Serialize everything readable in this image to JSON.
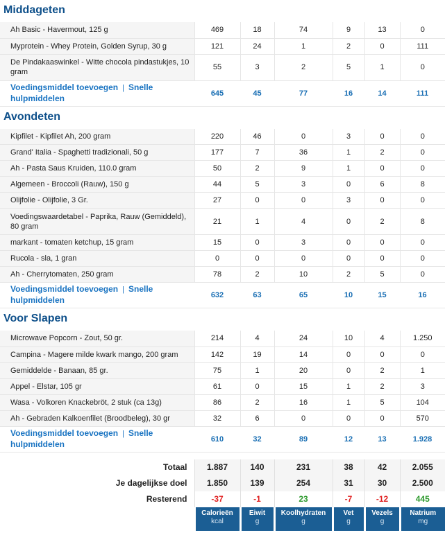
{
  "meals": [
    {
      "title": "Middageten",
      "foods": [
        {
          "name": "Ah Basic - Havermout, 125 g",
          "vals": [
            "469",
            "18",
            "74",
            "9",
            "13",
            "0"
          ]
        },
        {
          "name": "Myprotein - Whey Protein, Golden Syrup, 30 g",
          "vals": [
            "121",
            "24",
            "1",
            "2",
            "0",
            "111"
          ]
        },
        {
          "name": "De Pindakaaswinkel - Witte chocola pindastukjes, 10 gram",
          "vals": [
            "55",
            "3",
            "2",
            "5",
            "1",
            "0"
          ]
        }
      ],
      "totals": [
        "645",
        "45",
        "77",
        "16",
        "14",
        "111"
      ]
    },
    {
      "title": "Avondeten",
      "foods": [
        {
          "name": "Kipfilet - Kipfilet Ah, 200 gram",
          "vals": [
            "220",
            "46",
            "0",
            "3",
            "0",
            "0"
          ]
        },
        {
          "name": "Grand' Italia - Spaghetti tradizionali, 50 g",
          "vals": [
            "177",
            "7",
            "36",
            "1",
            "2",
            "0"
          ]
        },
        {
          "name": "Ah - Pasta Saus Kruiden, 110.0 gram",
          "vals": [
            "50",
            "2",
            "9",
            "1",
            "0",
            "0"
          ]
        },
        {
          "name": "Algemeen - Broccoli (Rauw), 150 g",
          "vals": [
            "44",
            "5",
            "3",
            "0",
            "6",
            "8"
          ]
        },
        {
          "name": "Olijfolie - Olijfolie, 3 Gr.",
          "vals": [
            "27",
            "0",
            "0",
            "3",
            "0",
            "0"
          ]
        },
        {
          "name": "Voedingswaardetabel - Paprika, Rauw (Gemiddeld), 80 gram",
          "vals": [
            "21",
            "1",
            "4",
            "0",
            "2",
            "8"
          ]
        },
        {
          "name": "markant - tomaten ketchup, 15 gram",
          "vals": [
            "15",
            "0",
            "3",
            "0",
            "0",
            "0"
          ]
        },
        {
          "name": "Rucola - sla, 1 gran",
          "vals": [
            "0",
            "0",
            "0",
            "0",
            "0",
            "0"
          ]
        },
        {
          "name": "Ah - Cherrytomaten, 250 gram",
          "vals": [
            "78",
            "2",
            "10",
            "2",
            "5",
            "0"
          ]
        }
      ],
      "totals": [
        "632",
        "63",
        "65",
        "10",
        "15",
        "16"
      ]
    },
    {
      "title": "Voor Slapen",
      "foods": [
        {
          "name": "Microwave Popcorn - Zout, 50 gr.",
          "vals": [
            "214",
            "4",
            "24",
            "10",
            "4",
            "1.250"
          ]
        },
        {
          "name": "Campina - Magere milde kwark mango, 200 gram",
          "vals": [
            "142",
            "19",
            "14",
            "0",
            "0",
            "0"
          ]
        },
        {
          "name": "Gemiddelde - Banaan, 85 gr.",
          "vals": [
            "75",
            "1",
            "20",
            "0",
            "2",
            "1"
          ]
        },
        {
          "name": "Appel - Elstar, 105 gr",
          "vals": [
            "61",
            "0",
            "15",
            "1",
            "2",
            "3"
          ]
        },
        {
          "name": "Wasa - Volkoren Knackebröt, 2 stuk (ca 13g)",
          "vals": [
            "86",
            "2",
            "16",
            "1",
            "5",
            "104"
          ]
        },
        {
          "name": "Ah - Gebraden Kalkoenfilet (Broodbeleg), 30 gr",
          "vals": [
            "32",
            "6",
            "0",
            "0",
            "0",
            "570"
          ]
        }
      ],
      "totals": [
        "610",
        "32",
        "89",
        "12",
        "13",
        "1.928"
      ]
    }
  ],
  "links": {
    "add_food": "Voedingsmiddel toevoegen",
    "separator": "|",
    "quick_tools": "Snelle hulpmiddelen"
  },
  "summary": {
    "totaal": {
      "label": "Totaal",
      "vals": [
        "1.887",
        "140",
        "231",
        "38",
        "42",
        "2.055"
      ]
    },
    "doel": {
      "label": "Je dagelijkse doel",
      "vals": [
        "1.850",
        "139",
        "254",
        "31",
        "30",
        "2.500"
      ]
    },
    "resterend": {
      "label": "Resterend",
      "vals": [
        "-37",
        "-1",
        "23",
        "-7",
        "-12",
        "445"
      ],
      "signs": [
        "neg",
        "neg",
        "pos",
        "neg",
        "neg",
        "pos"
      ]
    }
  },
  "columns": [
    {
      "title": "Calorieën",
      "unit": "kcal"
    },
    {
      "title": "Eiwit",
      "unit": "g"
    },
    {
      "title": "Koolhydraten",
      "unit": "g"
    },
    {
      "title": "Vet",
      "unit": "g"
    },
    {
      "title": "Vezels",
      "unit": "g"
    },
    {
      "title": "Natrium",
      "unit": "mg"
    }
  ],
  "colors": {
    "heading": "#0d4f8a",
    "link": "#1a74c2",
    "header_bg": "#1b5e94",
    "positive": "#2e9a2e",
    "negative": "#e01f1f"
  }
}
